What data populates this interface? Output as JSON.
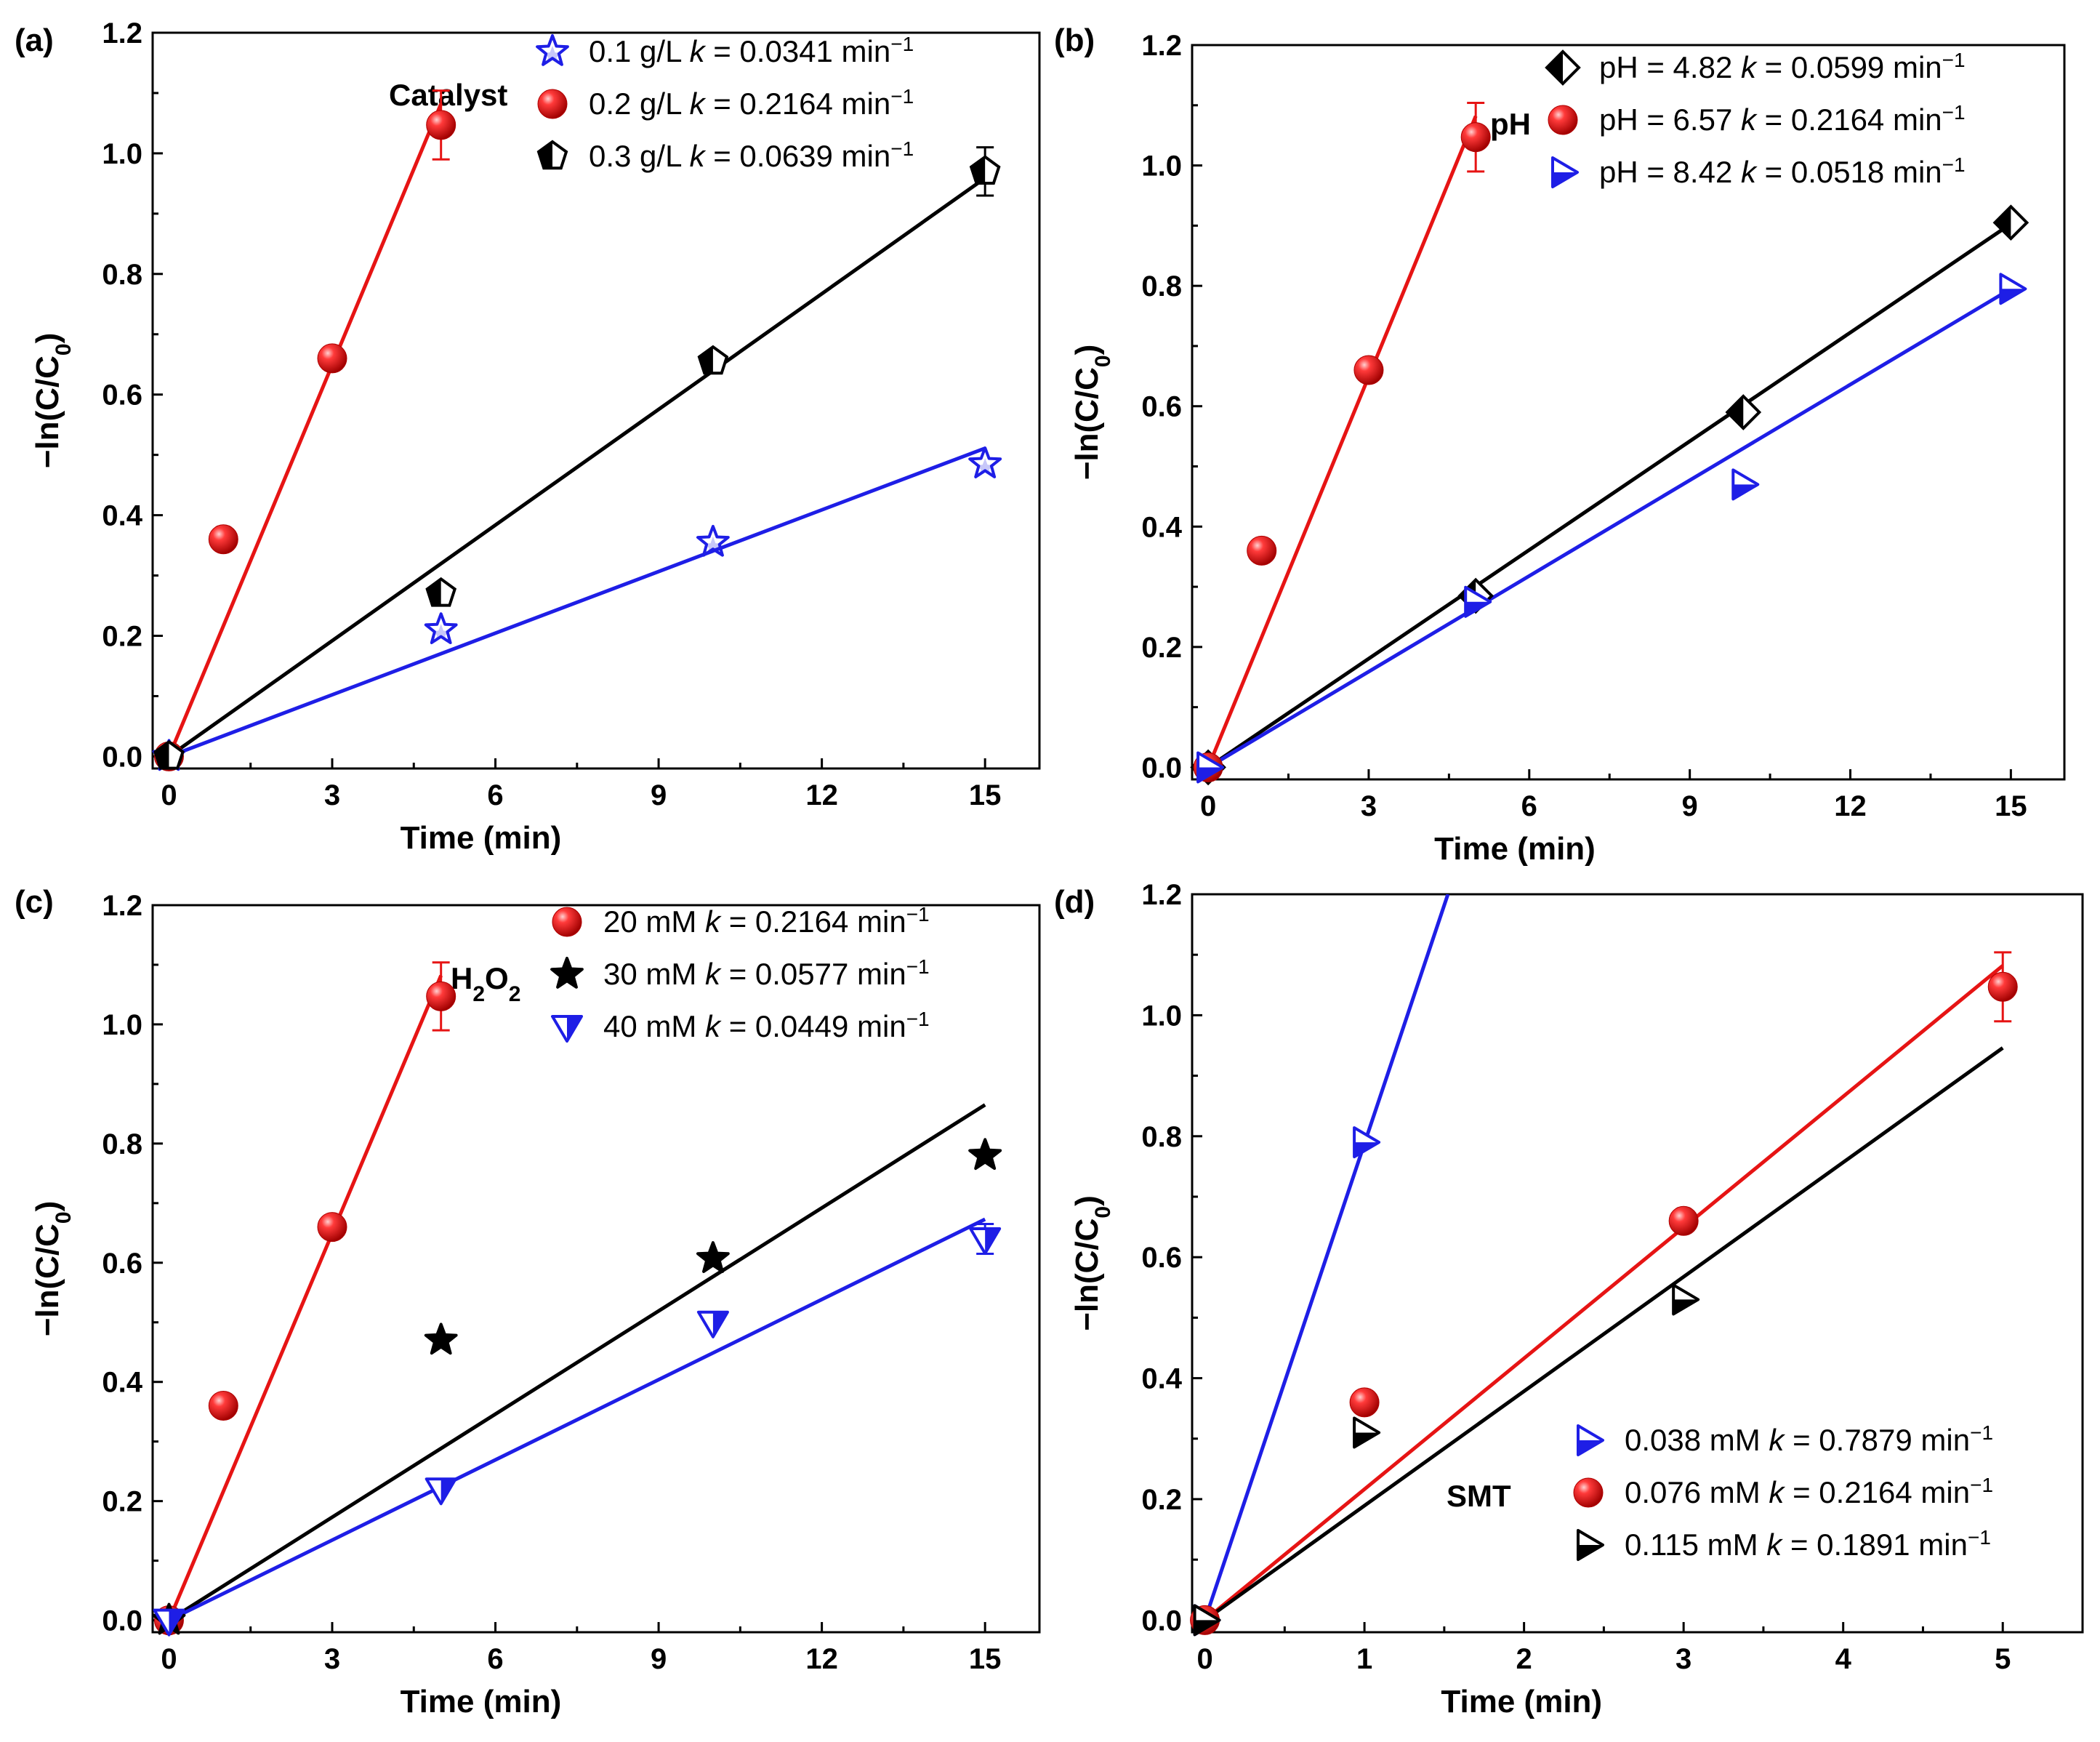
{
  "chart_data": [
    {
      "type": "scatter",
      "panel_label": "(a)",
      "group_label": "Catalyst",
      "group_sub": "",
      "xlabel": "Time (min)",
      "ylabel_main": "−ln(C/C",
      "ylabel_sub": "0",
      "ylabel_end": ")",
      "xlim": [
        -0.3,
        16
      ],
      "ylim": [
        -0.02,
        1.2
      ],
      "xticks": [
        0,
        3,
        6,
        9,
        12,
        15
      ],
      "xtick_labels": [
        "0",
        "3",
        "6",
        "9",
        "12",
        "15"
      ],
      "yticks": [
        0,
        0.2,
        0.4,
        0.6,
        0.8,
        1.0,
        1.2
      ],
      "ytick_labels": [
        "0.0",
        "0.2",
        "0.4",
        "0.6",
        "0.8",
        "1.0",
        "1.2"
      ],
      "legend_position": "top-right",
      "series": [
        {
          "name": "0.1 g/L",
          "k_label": "k",
          "k_value": " = 0.0341 min",
          "k_unit_sup": "−1",
          "color": "#1e1ee6",
          "marker": "star",
          "x": [
            0,
            5,
            10,
            15
          ],
          "y": [
            0.0,
            0.21,
            0.355,
            0.485
          ],
          "fit_x": [
            0,
            15
          ],
          "fit_y": [
            0,
            0.511
          ],
          "err": [
            null,
            null,
            null,
            null
          ]
        },
        {
          "name": "0.2 g/L",
          "k_label": "k",
          "k_value": " = 0.2164 min",
          "k_unit_sup": "−1",
          "color": "#e61414",
          "marker": "sphere",
          "x": [
            0,
            1,
            3,
            5
          ],
          "y": [
            0.0,
            0.36,
            0.66,
            1.047
          ],
          "fit_x": [
            0,
            5
          ],
          "fit_y": [
            0,
            1.082
          ],
          "err": [
            null,
            null,
            null,
            0.057
          ]
        },
        {
          "name": "0.3 g/L",
          "k_label": "k",
          "k_value": " = 0.0639 min",
          "k_unit_sup": "−1",
          "color": "#000000",
          "marker": "pentagon",
          "x": [
            0,
            5,
            10,
            15
          ],
          "y": [
            0.0,
            0.27,
            0.655,
            0.97
          ],
          "fit_x": [
            0,
            15
          ],
          "fit_y": [
            0,
            0.959
          ],
          "err": [
            null,
            null,
            null,
            0.04
          ]
        }
      ]
    },
    {
      "type": "scatter",
      "panel_label": "(b)",
      "group_label": "pH",
      "group_sub": "",
      "xlabel": "Time (min)",
      "ylabel_main": "−ln(C/C",
      "ylabel_sub": "0",
      "ylabel_end": ")",
      "xlim": [
        -0.3,
        16
      ],
      "ylim": [
        -0.02,
        1.2
      ],
      "xticks": [
        0,
        3,
        6,
        9,
        12,
        15
      ],
      "xtick_labels": [
        "0",
        "3",
        "6",
        "9",
        "12",
        "15"
      ],
      "yticks": [
        0,
        0.2,
        0.4,
        0.6,
        0.8,
        1.0,
        1.2
      ],
      "ytick_labels": [
        "0.0",
        "0.2",
        "0.4",
        "0.6",
        "0.8",
        "1.0",
        "1.2"
      ],
      "legend_position": "top-right",
      "series": [
        {
          "name": "pH = 4.82",
          "k_label": "k",
          "k_value": " = 0.0599 min",
          "k_unit_sup": "−1",
          "color": "#000000",
          "marker": "diamond",
          "x": [
            0,
            5,
            10,
            15
          ],
          "y": [
            0.0,
            0.285,
            0.59,
            0.905
          ],
          "fit_x": [
            0,
            15
          ],
          "fit_y": [
            0,
            0.903
          ],
          "err": [
            null,
            null,
            null,
            null
          ]
        },
        {
          "name": "pH = 6.57",
          "k_label": "k",
          "k_value": " = 0.2164 min",
          "k_unit_sup": "−1",
          "color": "#e61414",
          "marker": "sphere",
          "x": [
            0,
            1,
            3,
            5
          ],
          "y": [
            0.0,
            0.36,
            0.66,
            1.047
          ],
          "fit_x": [
            0,
            5
          ],
          "fit_y": [
            0,
            1.082
          ],
          "err": [
            null,
            null,
            null,
            0.057
          ]
        },
        {
          "name": "pH = 8.42",
          "k_label": "k",
          "k_value": " = 0.0518 min",
          "k_unit_sup": "−1",
          "color": "#1e1ee6",
          "marker": "triangle-right",
          "x": [
            0,
            5,
            10,
            15
          ],
          "y": [
            0.0,
            0.275,
            0.47,
            0.795
          ],
          "fit_x": [
            0,
            15
          ],
          "fit_y": [
            0,
            0.795
          ],
          "err": [
            null,
            null,
            null,
            null
          ]
        }
      ]
    },
    {
      "type": "scatter",
      "panel_label": "(c)",
      "group_label": "H",
      "group_sub": "2",
      "group_label_tail": "O",
      "group_sub_tail": "2",
      "xlabel": "Time (min)",
      "ylabel_main": "−ln(C/C",
      "ylabel_sub": "0",
      "ylabel_end": ")",
      "xlim": [
        -0.3,
        16
      ],
      "ylim": [
        -0.02,
        1.2
      ],
      "xticks": [
        0,
        3,
        6,
        9,
        12,
        15
      ],
      "xtick_labels": [
        "0",
        "3",
        "6",
        "9",
        "12",
        "15"
      ],
      "yticks": [
        0,
        0.2,
        0.4,
        0.6,
        0.8,
        1.0,
        1.2
      ],
      "ytick_labels": [
        "0.0",
        "0.2",
        "0.4",
        "0.6",
        "0.8",
        "1.0",
        "1.2"
      ],
      "legend_position": "top-right",
      "series": [
        {
          "name": "20 mM",
          "k_label": "k",
          "k_value": " = 0.2164 min",
          "k_unit_sup": "−1",
          "color": "#e61414",
          "marker": "sphere",
          "x": [
            0,
            1,
            3,
            5
          ],
          "y": [
            0.0,
            0.36,
            0.66,
            1.047
          ],
          "fit_x": [
            0,
            5
          ],
          "fit_y": [
            0,
            1.082
          ],
          "err": [
            null,
            null,
            null,
            0.057
          ]
        },
        {
          "name": "30 mM",
          "k_label": "k",
          "k_value": " = 0.0577 min",
          "k_unit_sup": "−1",
          "color": "#000000",
          "marker": "star",
          "x": [
            0,
            5,
            10,
            15
          ],
          "y": [
            0.0,
            0.47,
            0.607,
            0.78
          ],
          "fit_x": [
            0,
            15
          ],
          "fit_y": [
            0,
            0.865
          ],
          "err": [
            null,
            null,
            null,
            null
          ]
        },
        {
          "name": "40 mM",
          "k_label": "k",
          "k_value": " = 0.0449 min",
          "k_unit_sup": "−1",
          "color": "#1e1ee6",
          "marker": "triangle-down",
          "x": [
            0,
            5,
            10,
            15
          ],
          "y": [
            0.0,
            0.22,
            0.5,
            0.64
          ],
          "fit_x": [
            0,
            15
          ],
          "fit_y": [
            0,
            0.673
          ],
          "err": [
            null,
            null,
            null,
            0.025
          ]
        }
      ]
    },
    {
      "type": "scatter",
      "panel_label": "(d)",
      "group_label": "SMT",
      "group_sub": "",
      "xlabel": "Time (min)",
      "ylabel_main": "−ln(C/C",
      "ylabel_sub": "0",
      "ylabel_end": ")",
      "xlim": [
        -0.08,
        5.5
      ],
      "ylim": [
        -0.02,
        1.2
      ],
      "xticks": [
        0,
        1,
        2,
        3,
        4,
        5
      ],
      "xtick_labels": [
        "0",
        "1",
        "2",
        "3",
        "4",
        "5"
      ],
      "yticks": [
        0,
        0.2,
        0.4,
        0.6,
        0.8,
        1.0,
        1.2
      ],
      "ytick_labels": [
        "0.0",
        "0.2",
        "0.4",
        "0.6",
        "0.8",
        "1.0",
        "1.2"
      ],
      "legend_position": "bottom-right",
      "series": [
        {
          "name": "0.038 mM",
          "k_label": "k",
          "k_value": " = 0.7879 min",
          "k_unit_sup": "−1",
          "color": "#1e1ee6",
          "marker": "triangle-right",
          "x": [
            0,
            1
          ],
          "y": [
            0.0,
            0.79
          ],
          "fit_x": [
            0,
            1.523
          ],
          "fit_y": [
            0,
            1.2
          ],
          "err": [
            null,
            null
          ]
        },
        {
          "name": "0.076 mM",
          "k_label": "k",
          "k_value": " = 0.2164 min",
          "k_unit_sup": "−1",
          "color": "#e61414",
          "marker": "sphere",
          "x": [
            0,
            1,
            3,
            5
          ],
          "y": [
            0.0,
            0.36,
            0.66,
            1.047
          ],
          "fit_x": [
            0,
            5
          ],
          "fit_y": [
            0,
            1.082
          ],
          "err": [
            null,
            null,
            null,
            0.057
          ]
        },
        {
          "name": "0.115 mM",
          "k_label": "k",
          "k_value": " = 0.1891 min",
          "k_unit_sup": "−1",
          "color": "#000000",
          "marker": "triangle-right-half",
          "x": [
            0,
            1,
            3
          ],
          "y": [
            0.0,
            0.31,
            0.53
          ],
          "fit_x": [
            0,
            5
          ],
          "fit_y": [
            0,
            0.946
          ],
          "err": [
            null,
            null,
            null
          ]
        }
      ]
    }
  ]
}
